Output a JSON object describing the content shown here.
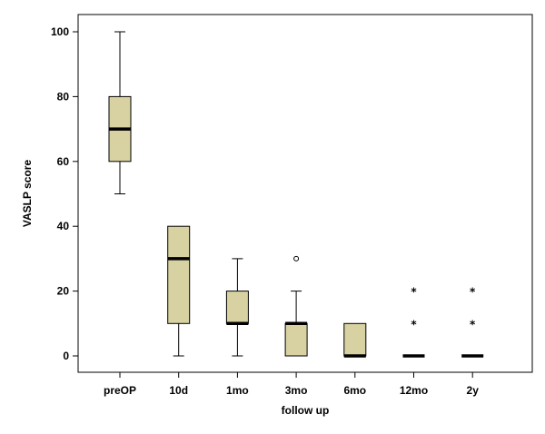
{
  "chart_data": {
    "type": "boxplot",
    "title": "",
    "xlabel": "follow up",
    "ylabel": "VASLP score",
    "ylim": [
      0,
      100
    ],
    "yticks": [
      0,
      20,
      40,
      60,
      80,
      100
    ],
    "grid": false,
    "legend": "none",
    "colors": {
      "box_fill": "#d8d2a3",
      "median": "#000000",
      "frame": "#000000"
    },
    "categories": [
      "preOP",
      "10d",
      "1mo",
      "3mo",
      "6mo",
      "12mo",
      "2y"
    ],
    "boxes": [
      {
        "category": "preOP",
        "whisker_low": 50,
        "q1": 60,
        "median": 70,
        "q3": 80,
        "whisker_high": 100,
        "outliers": [],
        "extremes": []
      },
      {
        "category": "10d",
        "whisker_low": 0,
        "q1": 10,
        "median": 30,
        "q3": 40,
        "whisker_high": 40,
        "outliers": [],
        "extremes": []
      },
      {
        "category": "1mo",
        "whisker_low": 0,
        "q1": 10,
        "median": 10,
        "q3": 20,
        "whisker_high": 30,
        "outliers": [],
        "extremes": []
      },
      {
        "category": "3mo",
        "whisker_low": 0,
        "q1": 0,
        "median": 10,
        "q3": 10,
        "whisker_high": 20,
        "outliers": [
          30
        ],
        "extremes": []
      },
      {
        "category": "6mo",
        "whisker_low": 0,
        "q1": 0,
        "median": 0,
        "q3": 10,
        "whisker_high": 10,
        "outliers": [],
        "extremes": []
      },
      {
        "category": "12mo",
        "whisker_low": 0,
        "q1": 0,
        "median": 0,
        "q3": 0,
        "whisker_high": 0,
        "outliers": [],
        "extremes": [
          10,
          20
        ]
      },
      {
        "category": "2y",
        "whisker_low": 0,
        "q1": 0,
        "median": 0,
        "q3": 0,
        "whisker_high": 0,
        "outliers": [],
        "extremes": [
          10,
          20
        ]
      }
    ],
    "outlier_symbol": "o",
    "extreme_symbol": "*"
  }
}
